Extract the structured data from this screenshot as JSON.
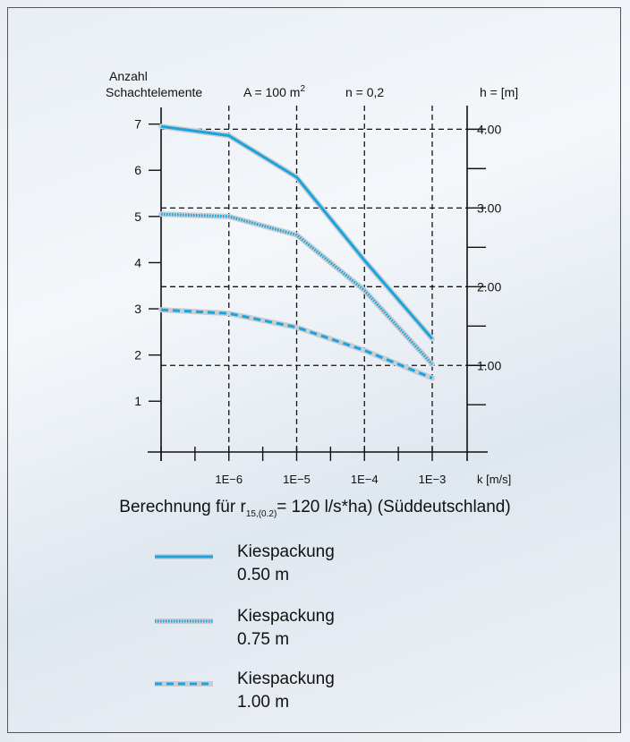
{
  "chart_data": {
    "type": "line",
    "header": {
      "y_left_label_line1": "Anzahl",
      "y_left_label_line2": "Schachtelemente",
      "param_A": "A = 100 m",
      "param_A_sup": "2",
      "param_n": "n = 0,2",
      "y_right_label": "h = [m]"
    },
    "x": [
      1e-07,
      1e-06,
      1e-05,
      0.0001,
      0.001
    ],
    "x_scale": "log",
    "x_tick_labels": [
      "1E−6",
      "1E−5",
      "1E−4",
      "1E−3"
    ],
    "x_label": "k [m/s]",
    "y_left_ticks": [
      "1",
      "2",
      "3",
      "4",
      "5",
      "6",
      "7"
    ],
    "y_left_range": [
      -0.1,
      7.4
    ],
    "y_right_ticks": [
      "1.00",
      "2.00",
      "3.00",
      "4.00"
    ],
    "y_right_range": [
      -0.1,
      4.3
    ],
    "right_grid_h": [
      1.0,
      2.0,
      3.0,
      4.0
    ],
    "series": [
      {
        "name": "Kiespackung 0.50 m",
        "style": "solid",
        "color": "#1aa3dc",
        "x": [
          1e-07,
          1e-06,
          1e-05,
          0.0001,
          0.001
        ],
        "values": [
          6.95,
          6.75,
          5.85,
          4.05,
          2.35
        ]
      },
      {
        "name": "Kiespackung 0.75 m",
        "style": "dotted",
        "color": "#1aa3dc",
        "x": [
          1e-07,
          1e-06,
          1e-05,
          0.0001,
          0.001
        ],
        "values": [
          5.05,
          5.0,
          4.6,
          3.4,
          1.8
        ]
      },
      {
        "name": "Kiespackung 1.00 m",
        "style": "dashed",
        "color": "#1aa3dc",
        "x": [
          1e-07,
          1e-06,
          1e-05,
          0.0001,
          0.001
        ],
        "values": [
          2.98,
          2.9,
          2.6,
          2.1,
          1.5
        ]
      }
    ],
    "grid": true
  },
  "caption": {
    "before": "Berechnung für r",
    "sub": "15,(0.2)",
    "after": "= 120 l/s*ha) (Süddeutschland)"
  },
  "legend": [
    {
      "line1": "Kiespackung",
      "line2": "0.50 m"
    },
    {
      "line1": "Kiespackung",
      "line2": "0.75 m"
    },
    {
      "line1": "Kiespackung",
      "line2": "1.00 m"
    }
  ]
}
